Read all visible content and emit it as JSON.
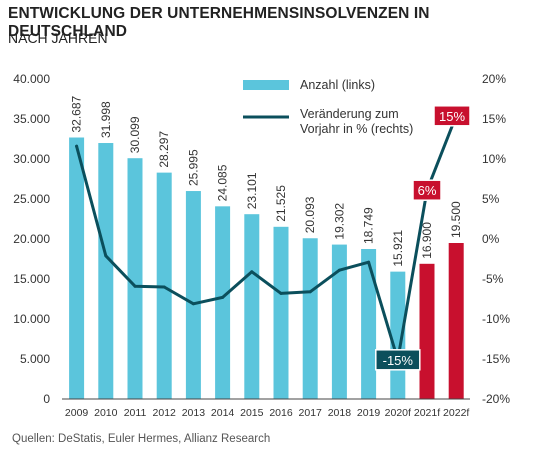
{
  "chart_data": {
    "type": "bar+line",
    "title": "ENTWICKLUNG DER UNTERNEHMENSINSOLVENZEN IN DEUTSCHLAND",
    "subtitle": "NACH JAHREN",
    "source": "Quellen: DeStatis, Euler Hermes, Allianz Research",
    "categories": [
      "2009",
      "2010",
      "2011",
      "2012",
      "2013",
      "2014",
      "2015",
      "2016",
      "2017",
      "2018",
      "2019",
      "2020f",
      "2021f",
      "2022f"
    ],
    "bars": {
      "name": "Anzahl (links)",
      "values": [
        32687,
        31998,
        30099,
        28297,
        25995,
        24085,
        23101,
        21525,
        20093,
        19302,
        18749,
        15921,
        16900,
        19500
      ],
      "labels": [
        "32.687",
        "31.998",
        "30.099",
        "28.297",
        "25.995",
        "24.085",
        "23.101",
        "21.525",
        "20.093",
        "19.302",
        "18.749",
        "15.921",
        "16.900",
        "19.500"
      ],
      "forecast_from_index": 12
    },
    "line": {
      "name": "Veränderung zum Vorjahr in % (rechts)",
      "values": [
        11.6,
        -2.1,
        -5.9,
        -6.0,
        -8.1,
        -7.3,
        -4.1,
        -6.8,
        -6.6,
        -3.9,
        -2.9,
        -15.1,
        6.1,
        15.4
      ],
      "callouts": [
        {
          "index": 11,
          "label": "-15%"
        },
        {
          "index": 12,
          "label": "6%"
        },
        {
          "index": 13,
          "label": "15%"
        }
      ]
    },
    "y_left": {
      "min": 0,
      "max": 40000,
      "ticks": [
        "0",
        "5.000",
        "10.000",
        "15.000",
        "20.000",
        "25.000",
        "30.000",
        "35.000",
        "40.000"
      ]
    },
    "y_right": {
      "min": -20,
      "max": 20,
      "ticks": [
        "-20%",
        "-15%",
        "-10%",
        "-5%",
        "0%",
        "5%",
        "10%",
        "15%",
        "20%"
      ]
    },
    "legend": {
      "bar_label": "Anzahl (links)",
      "line_label_1": "Veränderung zum",
      "line_label_2": "Vorjahr in % (rechts)",
      "placement": "top-right"
    },
    "colors": {
      "bar": "#5bc5dc",
      "forecast_bar": "#c8102e",
      "line": "#0b4f5c",
      "text": "#222222"
    }
  }
}
